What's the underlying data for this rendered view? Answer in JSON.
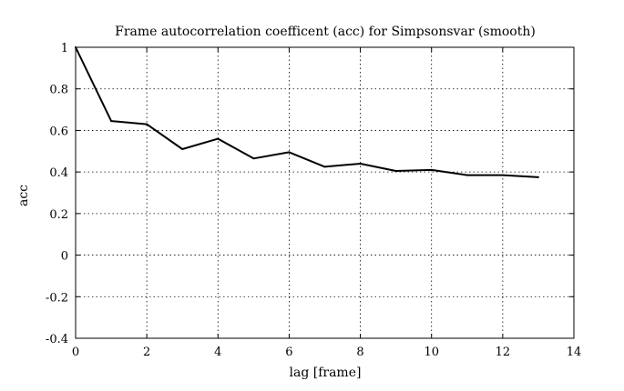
{
  "chart_data": {
    "type": "line",
    "title": "Frame autocorrelation coefficent (acc) for Simpsonsvar (smooth)",
    "xlabel": "lag [frame]",
    "ylabel": "acc",
    "xlim": [
      0,
      14
    ],
    "ylim": [
      -0.4,
      1
    ],
    "xticks": [
      0,
      2,
      4,
      6,
      8,
      10,
      12,
      14
    ],
    "yticks": [
      -0.4,
      -0.2,
      0,
      0.2,
      0.4,
      0.6,
      0.8,
      1
    ],
    "grid": true,
    "series": [
      {
        "x": [
          0,
          1,
          2,
          3,
          4,
          5,
          6,
          7,
          8,
          9,
          10,
          11,
          12,
          13
        ],
        "values": [
          1.0,
          0.645,
          0.63,
          0.51,
          0.56,
          0.465,
          0.495,
          0.425,
          0.44,
          0.405,
          0.41,
          0.385,
          0.385,
          0.375
        ]
      }
    ]
  }
}
